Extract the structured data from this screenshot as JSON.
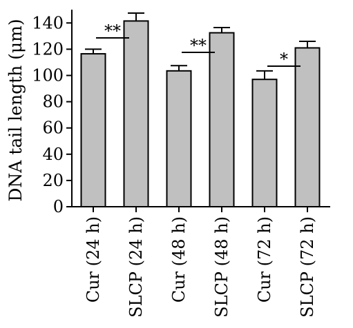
{
  "chart_data": {
    "type": "bar",
    "categories": [
      "Cur (24 h)",
      "SLCP (24 h)",
      "Cur (48 h)",
      "SLCP (48 h)",
      "Cur (72 h)",
      "SLCP (72 h)"
    ],
    "values": [
      116.5,
      141.5,
      103.5,
      132.5,
      97,
      121
    ],
    "errors": [
      3.5,
      6,
      4,
      4,
      6.5,
      5
    ],
    "bar_color": "#c0c0c0",
    "ylabel": "DNA tail length (μm)",
    "ylim": [
      0,
      150
    ],
    "yticks": [
      0,
      20,
      40,
      60,
      80,
      100,
      120,
      140
    ],
    "grid": false,
    "significance": [
      {
        "from": 0,
        "to": 1,
        "label": "**"
      },
      {
        "from": 2,
        "to": 3,
        "label": "**"
      },
      {
        "from": 4,
        "to": 5,
        "label": "*"
      }
    ]
  }
}
